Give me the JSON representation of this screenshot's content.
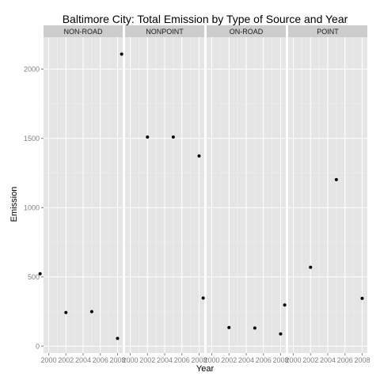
{
  "chart_data": {
    "type": "scatter",
    "title": "Baltimore City: Total Emission by Type of Source and Year",
    "xlabel": "Year",
    "ylabel": "Emission",
    "xlim": [
      1999.4,
      2008.6
    ],
    "ylim": [
      -50,
      2230
    ],
    "x_ticks": [
      2000,
      2002,
      2004,
      2006,
      2008
    ],
    "y_ticks": [
      0,
      500,
      1000,
      1500,
      2000
    ],
    "grid": true,
    "colors": {
      "panel_background": "#e5e5e5",
      "grid_major": "#ffffff",
      "grid_minor": "#f2f2f2",
      "strip_background": "#cccccc",
      "point": "#000000"
    },
    "facets": [
      {
        "name": "NON-ROAD",
        "x": [
          1999,
          2002,
          2005,
          2008
        ],
        "y": [
          522.94,
          242.85,
          248.93,
          55.82
        ]
      },
      {
        "name": "NONPOINT",
        "x": [
          1999,
          2002,
          2005,
          2008
        ],
        "y": [
          2107.63,
          1509.5,
          1509.5,
          1373.21
        ]
      },
      {
        "name": "ON-ROAD",
        "x": [
          1999,
          2002,
          2005,
          2008
        ],
        "y": [
          346.82,
          134.31,
          130.43,
          88.28
        ]
      },
      {
        "name": "POINT",
        "x": [
          1999,
          2002,
          2005,
          2008
        ],
        "y": [
          296.8,
          569.26,
          1202.49,
          344.98
        ]
      }
    ]
  }
}
